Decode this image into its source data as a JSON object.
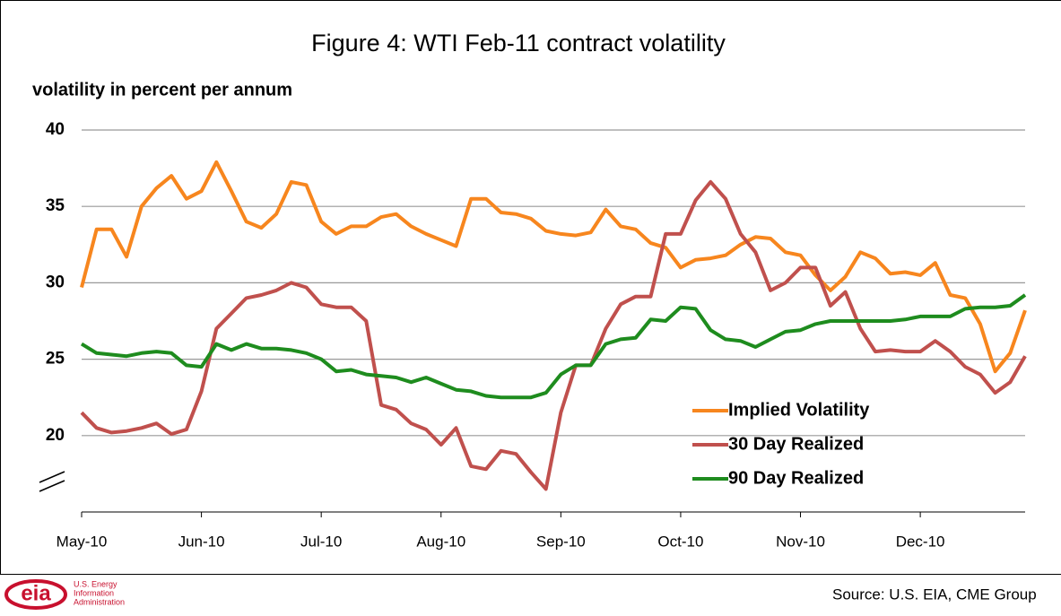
{
  "chart_data": {
    "type": "line",
    "title": "Figure 4: WTI  Feb-11 contract volatility",
    "y_label": "volatility in percent per annum",
    "source": "Source: U.S. EIA, CME Group",
    "logo": {
      "mark": "eia",
      "text": [
        "U.S. Energy",
        "Information",
        "Administration"
      ]
    },
    "categories": [
      "May-10",
      null,
      null,
      null,
      null,
      null,
      null,
      null,
      "Jun-10",
      null,
      null,
      null,
      null,
      null,
      null,
      null,
      "Jul-10",
      null,
      null,
      null,
      null,
      null,
      null,
      null,
      "Aug-10",
      null,
      null,
      null,
      null,
      null,
      null,
      null,
      "Sep-10",
      null,
      null,
      null,
      null,
      null,
      null,
      null,
      "Oct-10",
      null,
      null,
      null,
      null,
      null,
      null,
      null,
      "Nov-10",
      null,
      null,
      null,
      null,
      null,
      null,
      null,
      "Dec-10",
      null,
      null,
      null,
      null,
      null,
      null,
      null
    ],
    "ylim": [
      15,
      40
    ],
    "yticks": [
      20,
      25,
      30,
      35,
      40
    ],
    "grid": true,
    "series": [
      {
        "name": "Implied Volatility",
        "color": "#f7861e",
        "values": [
          29.7,
          33.5,
          33.5,
          31.7,
          35,
          36.2,
          37,
          35.5,
          36,
          37.9,
          36,
          34,
          33.6,
          34.5,
          36.6,
          36.4,
          34,
          33.2,
          33.7,
          33.7,
          34.3,
          34.5,
          33.7,
          33.2,
          32.8,
          32.4,
          35.5,
          35.5,
          34.6,
          34.5,
          34.2,
          33.4,
          33.2,
          33.1,
          33.3,
          34.8,
          33.7,
          33.5,
          32.6,
          32.3,
          31,
          31.5,
          31.6,
          31.8,
          32.5,
          33,
          32.9,
          32,
          31.8,
          30.5,
          29.5,
          30.4,
          32,
          31.6,
          30.6,
          30.7,
          30.5,
          31.3,
          29.2,
          29,
          27.3,
          24.2,
          25.4,
          28.2
        ]
      },
      {
        "name": "30 Day Realized",
        "color": "#c0504d",
        "values": [
          21.5,
          20.5,
          20.2,
          20.3,
          20.5,
          20.8,
          20.1,
          20.4,
          22.9,
          27,
          28,
          29,
          29.2,
          29.5,
          30,
          29.7,
          28.6,
          28.4,
          28.4,
          27.5,
          22,
          21.7,
          20.8,
          20.4,
          19.4,
          20.5,
          18,
          17.8,
          19,
          18.8,
          17.6,
          16.5,
          21.5,
          24.6,
          24.6,
          27,
          28.6,
          29.1,
          29.1,
          33.2,
          33.2,
          35.4,
          36.6,
          35.5,
          33.2,
          32,
          29.5,
          30,
          31,
          31,
          28.5,
          29.4,
          27,
          25.5,
          25.6,
          25.5,
          25.5,
          26.2,
          25.5,
          24.5,
          24,
          22.8,
          23.5,
          25.2
        ]
      },
      {
        "name": "90 Day Realized",
        "color": "#1e8c1e",
        "values": [
          26,
          25.4,
          25.3,
          25.2,
          25.4,
          25.5,
          25.4,
          24.6,
          24.5,
          26,
          25.6,
          26,
          25.7,
          25.7,
          25.6,
          25.4,
          25,
          24.2,
          24.3,
          24,
          23.9,
          23.8,
          23.5,
          23.8,
          23.4,
          23,
          22.9,
          22.6,
          22.5,
          22.5,
          22.5,
          22.8,
          24,
          24.6,
          24.6,
          26,
          26.3,
          26.4,
          27.6,
          27.5,
          28.4,
          28.3,
          26.9,
          26.3,
          26.2,
          25.8,
          26.3,
          26.8,
          26.9,
          27.3,
          27.5,
          27.5,
          27.5,
          27.5,
          27.5,
          27.6,
          27.8,
          27.8,
          27.8,
          28.3,
          28.4,
          28.4,
          28.5,
          29.2
        ]
      }
    ]
  }
}
